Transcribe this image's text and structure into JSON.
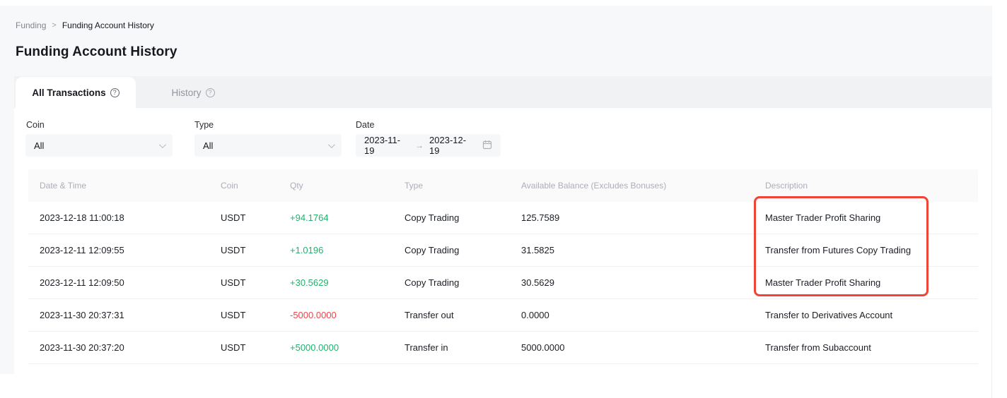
{
  "breadcrumb": {
    "parent": "Funding",
    "separator": ">",
    "current": "Funding Account History"
  },
  "page": {
    "title": "Funding Account History"
  },
  "tabs": {
    "all_transactions": {
      "label": "All Transactions",
      "info_icon": "?"
    },
    "history": {
      "label": "History",
      "info_icon": "?"
    }
  },
  "filters": {
    "coin": {
      "label": "Coin",
      "value": "All"
    },
    "type": {
      "label": "Type",
      "value": "All"
    },
    "date": {
      "label": "Date",
      "start": "2023-11-19",
      "arrow": "→",
      "end": "2023-12-19"
    }
  },
  "table": {
    "columns": [
      "Date & Time",
      "Coin",
      "Qty",
      "Type",
      "Available Balance (Excludes Bonuses)",
      "Description"
    ],
    "rows": [
      {
        "datetime": "2023-12-18 11:00:18",
        "coin": "USDT",
        "qty": "+94.1764",
        "qty_dir": "pos",
        "type": "Copy Trading",
        "balance": "125.7589",
        "description": "Master Trader Profit Sharing"
      },
      {
        "datetime": "2023-12-11 12:09:55",
        "coin": "USDT",
        "qty": "+1.0196",
        "qty_dir": "pos",
        "type": "Copy Trading",
        "balance": "31.5825",
        "description": "Transfer from Futures Copy Trading"
      },
      {
        "datetime": "2023-12-11 12:09:50",
        "coin": "USDT",
        "qty": "+30.5629",
        "qty_dir": "pos",
        "type": "Copy Trading",
        "balance": "30.5629",
        "description": "Master Trader Profit Sharing"
      },
      {
        "datetime": "2023-11-30 20:37:31",
        "coin": "USDT",
        "qty": "-5000.0000",
        "qty_dir": "neg",
        "type": "Transfer out",
        "balance": "0.0000",
        "description": "Transfer to Derivatives Account"
      },
      {
        "datetime": "2023-11-30 20:37:20",
        "coin": "USDT",
        "qty": "+5000.0000",
        "qty_dir": "pos",
        "type": "Transfer in",
        "balance": "5000.0000",
        "description": "Transfer from Subaccount"
      }
    ]
  },
  "annotation": {
    "highlighted_column": "Description",
    "highlighted_rows": [
      0,
      1,
      2
    ],
    "color": "#f04438"
  },
  "colors": {
    "positive": "#20b26c",
    "negative": "#ef454a",
    "page_bg": "#f7f8fa",
    "tabstrip_bg": "#f1f2f4"
  }
}
